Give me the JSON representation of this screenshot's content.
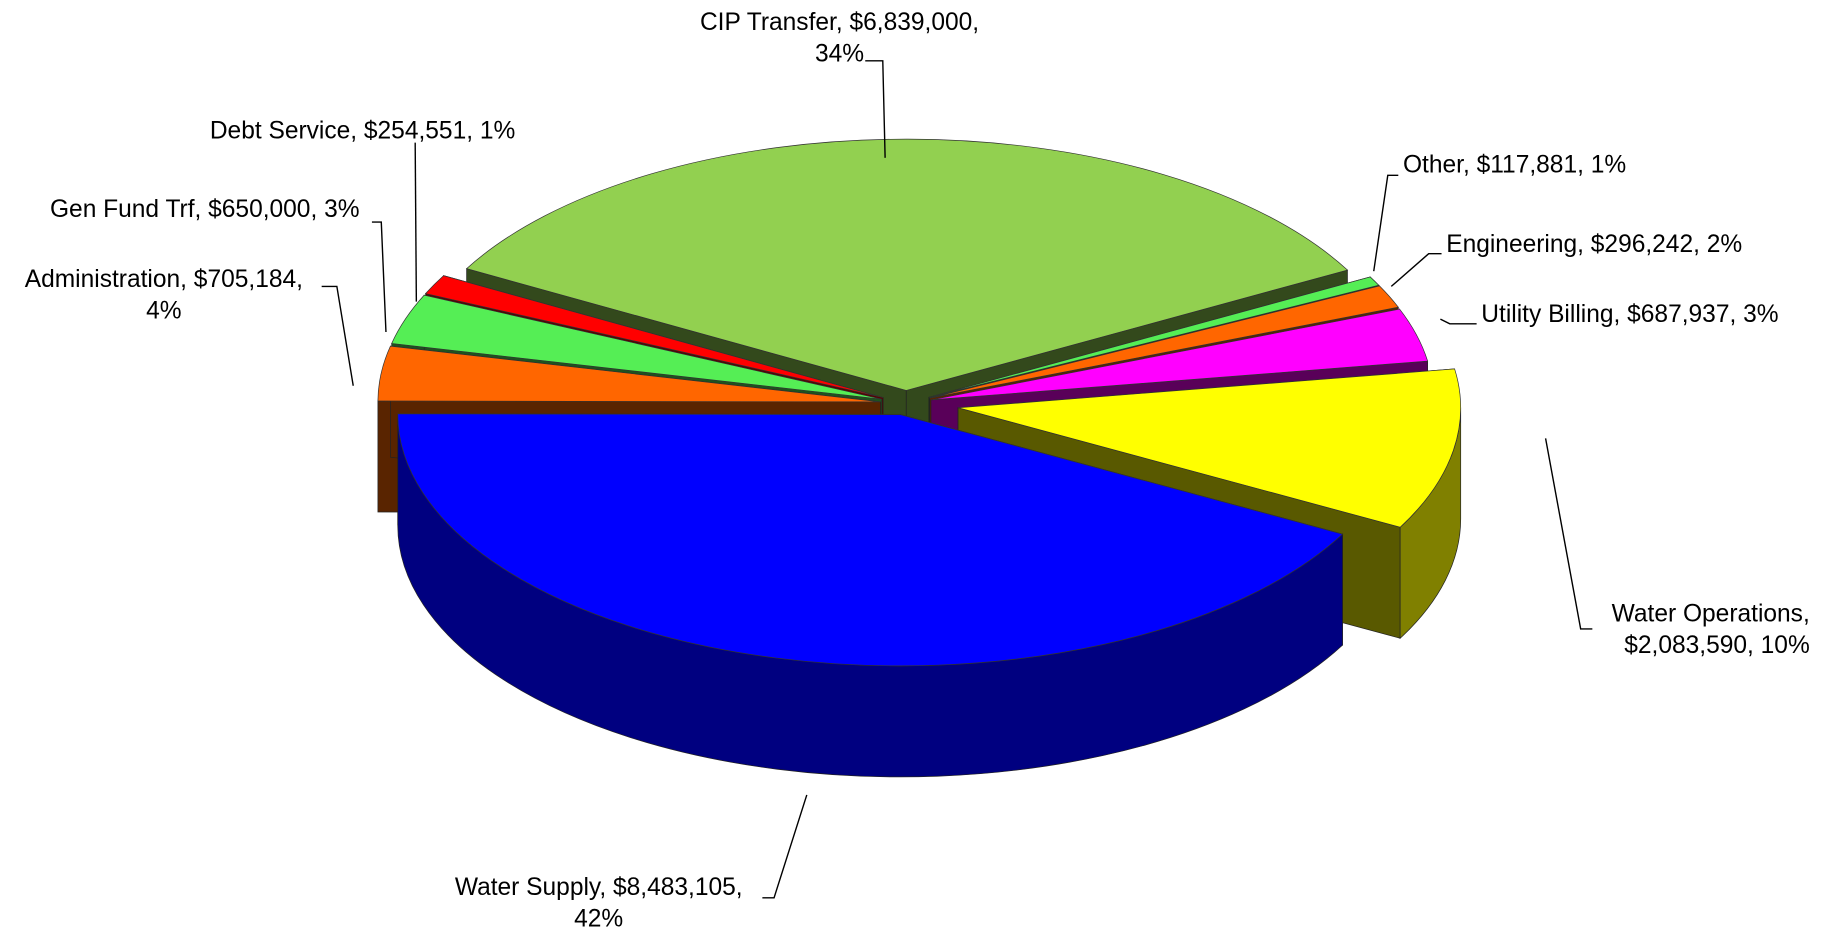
{
  "chart_data": {
    "type": "pie3d",
    "labels": [
      [
        "CIP Transfer, $6,839,000,",
        "34%"
      ],
      [
        "Other, $117,881, 1%"
      ],
      [
        "Engineering, $296,242, 2%"
      ],
      [
        "Utility Billing, $687,937, 3%"
      ],
      [
        "Water Operations,",
        "$2,083,590, 10%"
      ],
      [
        "Water Supply, $8,483,105,",
        "42%"
      ],
      [
        "Administration, $705,184,",
        "4%"
      ],
      [
        "Gen Fund Trf, $650,000, 3%"
      ],
      [
        "Debt Service, $254,551, 1%"
      ]
    ],
    "values": [
      6839000,
      117881,
      296242,
      687937,
      2083590,
      8483105,
      705184,
      650000,
      254551
    ],
    "colors": [
      "#92d050",
      "#55ee55",
      "#ff6600",
      "#ff00ff",
      "#ffff00",
      "#0000ff",
      "#ff6600",
      "#55ee55",
      "#ff0000"
    ]
  }
}
